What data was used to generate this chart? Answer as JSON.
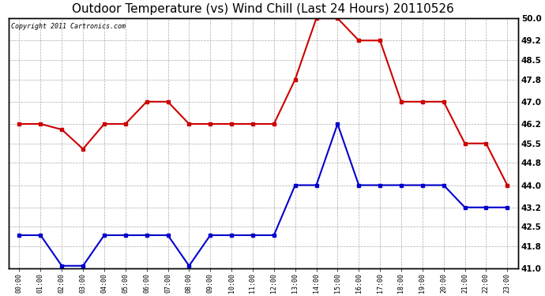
{
  "title": "Outdoor Temperature (vs) Wind Chill (Last 24 Hours) 20110526",
  "copyright": "Copyright 2011 Cartronics.com",
  "x_labels": [
    "00:00",
    "01:00",
    "02:00",
    "03:00",
    "04:00",
    "05:00",
    "06:00",
    "07:00",
    "08:00",
    "09:00",
    "10:00",
    "11:00",
    "12:00",
    "13:00",
    "14:00",
    "15:00",
    "16:00",
    "17:00",
    "18:00",
    "19:00",
    "20:00",
    "21:00",
    "22:00",
    "23:00"
  ],
  "temp_red": [
    46.2,
    46.2,
    46.0,
    45.3,
    46.2,
    46.2,
    47.0,
    47.0,
    46.2,
    46.2,
    46.2,
    46.2,
    46.2,
    47.8,
    50.0,
    50.0,
    49.2,
    49.2,
    47.0,
    47.0,
    47.0,
    45.5,
    45.5,
    44.0
  ],
  "wind_chill_blue": [
    42.2,
    42.2,
    41.1,
    41.1,
    42.2,
    42.2,
    42.2,
    42.2,
    41.1,
    42.2,
    42.2,
    42.2,
    42.2,
    44.0,
    44.0,
    46.2,
    44.0,
    44.0,
    44.0,
    44.0,
    44.0,
    43.2,
    43.2,
    43.2
  ],
  "ylim_min": 41.0,
  "ylim_max": 50.0,
  "yticks": [
    41.0,
    41.8,
    42.5,
    43.2,
    44.0,
    44.8,
    45.5,
    46.2,
    47.0,
    47.8,
    48.5,
    49.2,
    50.0
  ],
  "red_color": "#cc0000",
  "blue_color": "#0000cc",
  "bg_color": "#ffffff",
  "grid_color": "#aaaaaa",
  "title_fontsize": 11,
  "marker": "s",
  "marker_size": 3.0,
  "line_width": 1.5
}
